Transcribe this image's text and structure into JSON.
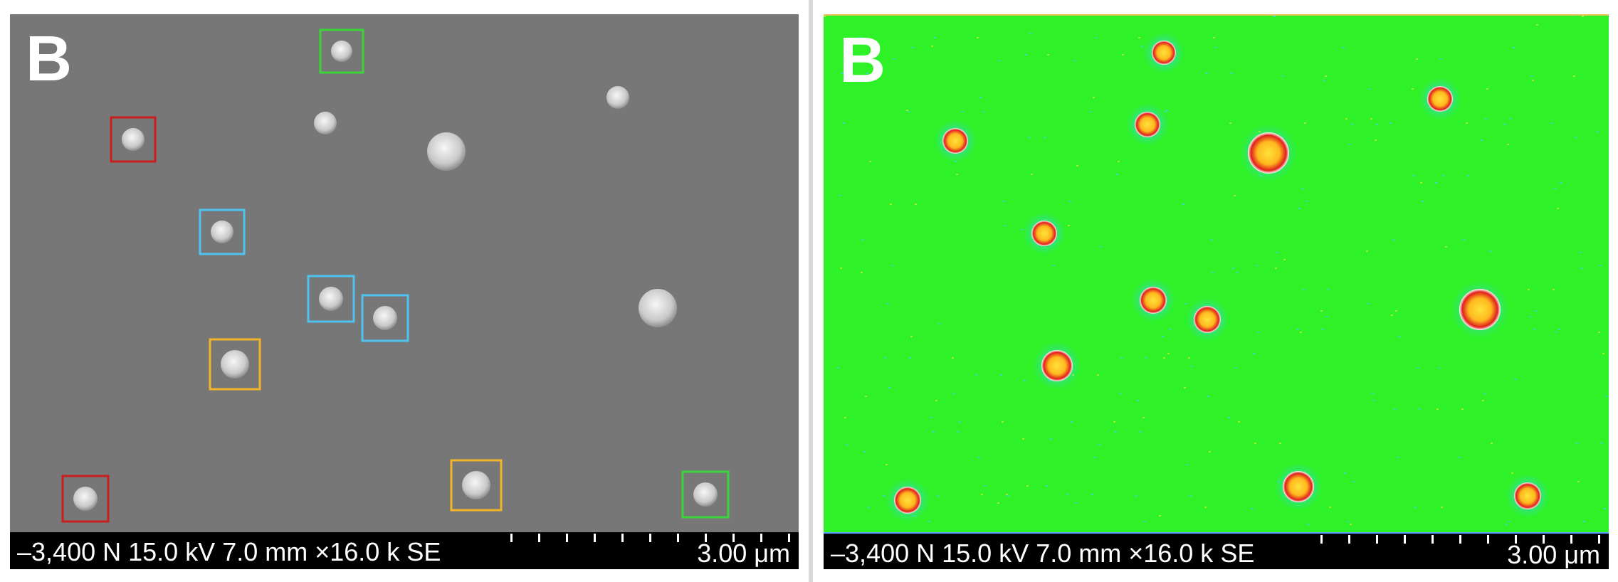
{
  "panels": [
    {
      "label": "B",
      "infobar": {
        "meta": "–3,400 N 15.0 kV 7.0 mm ×16.0 k SE",
        "scale": "3.00 μm"
      }
    },
    {
      "label": "B",
      "infobar": {
        "meta": "–3,400 N 15.0 kV 7.0 mm ×16.0 k SE",
        "scale": "3.00 μm"
      }
    }
  ],
  "colors": {
    "sem_background": "#777777",
    "particle": "#e4e4e4",
    "heatmap_background": "#2ef227",
    "heatmap_particle_outer": "#e0201c",
    "heatmap_particle_core": "#ffb81f",
    "box_red": "#c81e1e",
    "box_cyan": "#4fc3f0",
    "box_yellow": "#f0b429",
    "box_green": "#3ad43a"
  }
}
